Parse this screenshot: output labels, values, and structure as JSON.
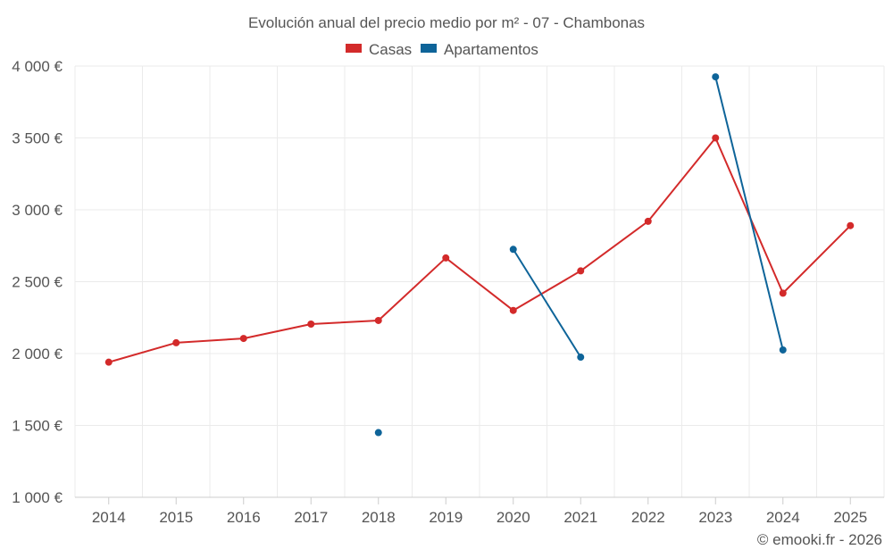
{
  "chart_data": {
    "type": "line",
    "title": "Evolución anual del precio medio por m² - 07 - Chambonas",
    "xlabel": "",
    "ylabel": "",
    "categories": [
      "2014",
      "2015",
      "2016",
      "2017",
      "2018",
      "2019",
      "2020",
      "2021",
      "2022",
      "2023",
      "2024",
      "2025"
    ],
    "ylim": [
      1000,
      4000
    ],
    "yticks": [
      1000,
      1500,
      2000,
      2500,
      3000,
      3500,
      4000
    ],
    "ytick_labels": [
      "1 000 €",
      "1 500 €",
      "2 000 €",
      "2 500 €",
      "3 000 €",
      "3 500 €",
      "4 000 €"
    ],
    "grid": true,
    "legend_position": "top-center",
    "series": [
      {
        "name": "Casas",
        "color": "#d32a2a",
        "values": [
          1940,
          2075,
          2105,
          2205,
          2230,
          2665,
          2300,
          2575,
          2920,
          3500,
          2420,
          2890
        ]
      },
      {
        "name": "Apartamentos",
        "color": "#0e6499",
        "values": [
          null,
          null,
          null,
          null,
          1450,
          null,
          2725,
          1975,
          null,
          3925,
          2025,
          null
        ]
      }
    ],
    "credit": "© emooki.fr - 2026"
  }
}
